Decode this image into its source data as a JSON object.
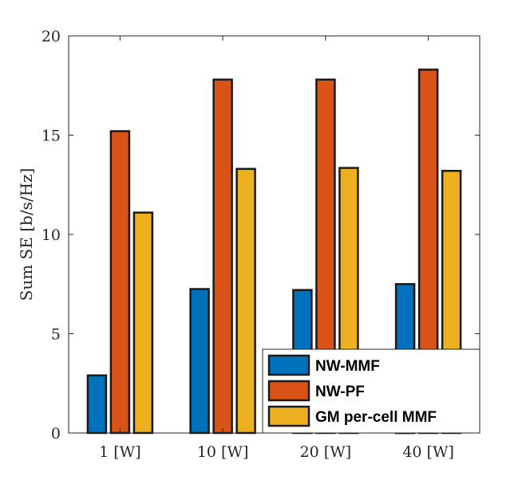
{
  "chart_data": {
    "type": "bar",
    "title": "",
    "xlabel": "",
    "ylabel": "Sum SE [b/s/Hz]",
    "ylim": [
      0,
      20
    ],
    "yticks": [
      0,
      5,
      10,
      15,
      20
    ],
    "categories": [
      "1 [W]",
      "10 [W]",
      "20 [W]",
      "40 [W]"
    ],
    "series": [
      {
        "name": "NW-MMF",
        "color": "#0072BD",
        "values": [
          2.9,
          7.25,
          7.2,
          7.5
        ]
      },
      {
        "name": "NW-PF",
        "color": "#D95319",
        "values": [
          15.2,
          17.8,
          17.8,
          18.3
        ]
      },
      {
        "name": "GM per-cell MMF",
        "color": "#EDB120",
        "values": [
          11.1,
          13.3,
          13.35,
          13.2
        ]
      }
    ],
    "legend_position": "bottom-right",
    "grid": false
  }
}
